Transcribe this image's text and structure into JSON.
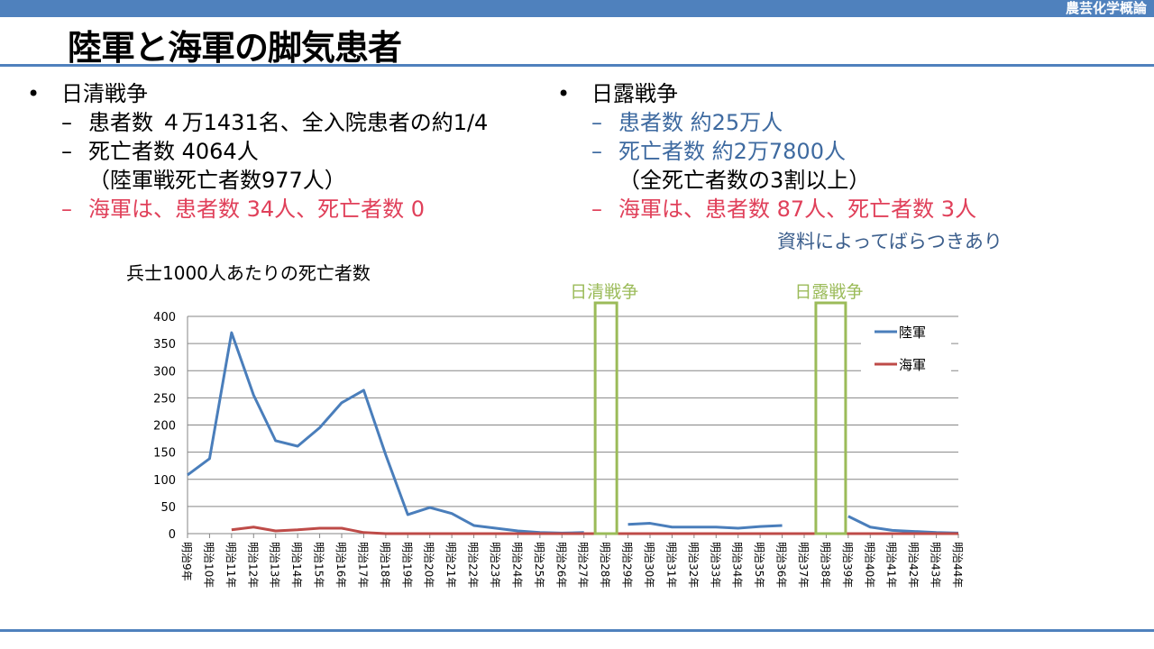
{
  "header": {
    "course": "農芸化学概論",
    "title": "陸軍と海軍の脚気患者"
  },
  "left": {
    "heading": "日清戦争",
    "items": [
      "患者数 ４万1431名、全入院患者の約1/4",
      "死亡者数 4064人"
    ],
    "continuation": "（陸軍戦死亡者数977人）",
    "navy": "海軍は、患者数 34人、死亡者数 0"
  },
  "right": {
    "heading": "日露戦争",
    "items": [
      "患者数 約25万人",
      "死亡者数 約2万7800人"
    ],
    "continuation": "（全死亡者数の3割以上）",
    "navy": "海軍は、患者数 87人、死亡者数 3人"
  },
  "note": "資料によってばらつきあり",
  "dash": "–",
  "colors": {
    "bar": "#4f81bd",
    "army": "#4a7ebb",
    "navy": "#be4b48",
    "war": "#9bbb59"
  },
  "chart_data": {
    "type": "line",
    "title": "兵士1000人あたりの死亡者数",
    "xlabel": "",
    "ylabel": "",
    "ylim": [
      0,
      400
    ],
    "yticks": [
      0,
      50,
      100,
      150,
      200,
      250,
      300,
      350,
      400
    ],
    "grid": true,
    "legend_position": "top-right",
    "categories": [
      "明治9年",
      "明治10年",
      "明治11年",
      "明治12年",
      "明治13年",
      "明治14年",
      "明治15年",
      "明治16年",
      "明治17年",
      "明治18年",
      "明治19年",
      "明治20年",
      "明治21年",
      "明治22年",
      "明治23年",
      "明治24年",
      "明治25年",
      "明治26年",
      "明治27年",
      "明治28年",
      "明治29年",
      "明治30年",
      "明治31年",
      "明治32年",
      "明治33年",
      "明治34年",
      "明治35年",
      "明治36年",
      "明治37年",
      "明治38年",
      "明治39年",
      "明治40年",
      "明治41年",
      "明治42年",
      "明治43年",
      "明治44年"
    ],
    "series": [
      {
        "name": "陸軍",
        "values": [
          108,
          138,
          370,
          255,
          171,
          161,
          195,
          241,
          264,
          145,
          35,
          48,
          37,
          15,
          10,
          5,
          2,
          1,
          2,
          null,
          17,
          19,
          12,
          12,
          12,
          10,
          13,
          15,
          null,
          null,
          32,
          12,
          6,
          4,
          2,
          1
        ]
      },
      {
        "name": "海軍",
        "values": [
          null,
          null,
          7,
          12,
          5,
          7,
          10,
          10,
          2,
          0,
          0,
          0,
          0,
          0,
          0,
          0,
          0,
          0,
          0,
          0,
          0,
          0,
          0,
          0,
          0,
          0,
          0,
          0,
          0,
          0,
          0,
          0,
          0,
          0,
          0,
          0
        ]
      }
    ],
    "annotations": [
      {
        "label": "日清戦争",
        "category": "明治28年"
      },
      {
        "label": "日露戦争",
        "category": "明治38年"
      }
    ]
  }
}
